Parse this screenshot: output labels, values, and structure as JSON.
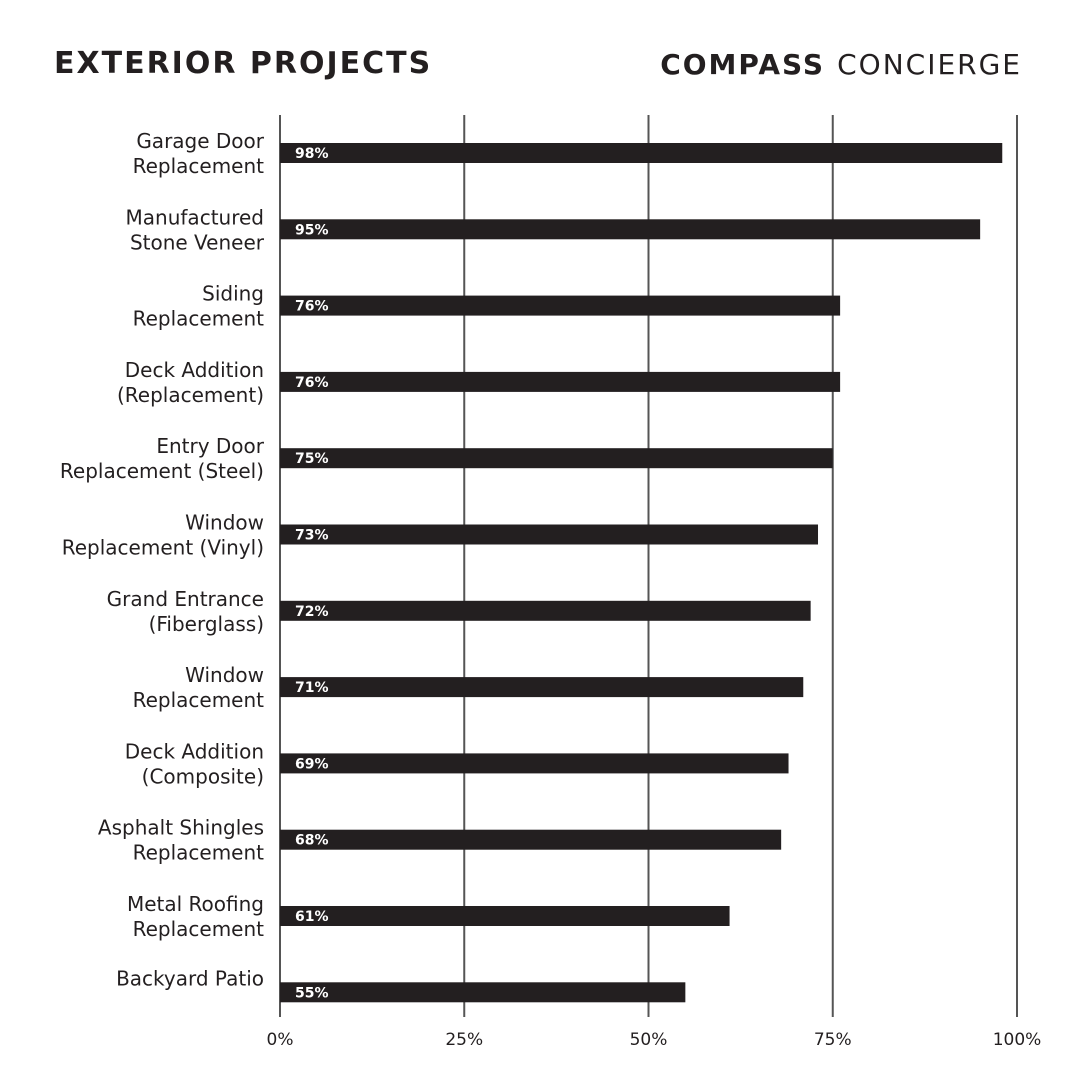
{
  "header": {
    "title": "EXTERIOR PROJECTS",
    "brand_primary": "COMPASS",
    "brand_secondary": "CONCIERGE"
  },
  "colors": {
    "bar": "#231f20",
    "grid": "#555555",
    "text": "#231f20",
    "bar_label": "#ffffff"
  },
  "chart_data": {
    "type": "bar",
    "orientation": "horizontal",
    "title": "EXTERIOR PROJECTS",
    "xlabel": "",
    "ylabel": "",
    "xlim": [
      0,
      100
    ],
    "ticks": [
      0,
      25,
      50,
      75,
      100
    ],
    "tick_labels": [
      "0%",
      "25%",
      "50%",
      "75%",
      "100%"
    ],
    "grid": true,
    "categories": [
      [
        "Garage Door",
        "Replacement"
      ],
      [
        "Manufactured",
        "Stone Veneer"
      ],
      [
        "Siding",
        "Replacement"
      ],
      [
        "Deck Addition",
        "(Replacement)"
      ],
      [
        "Entry Door",
        "Replacement (Steel)"
      ],
      [
        "Window",
        "Replacement (Vinyl)"
      ],
      [
        "Grand Entrance",
        "(Fiberglass)"
      ],
      [
        "Window",
        "Replacement"
      ],
      [
        "Deck Addition",
        "(Composite)"
      ],
      [
        "Asphalt Shingles",
        "Replacement"
      ],
      [
        "Metal Roofing",
        "Replacement"
      ],
      [
        "Backyard Patio"
      ]
    ],
    "values": [
      98,
      95,
      76,
      76,
      75,
      73,
      72,
      71,
      69,
      68,
      61,
      55
    ],
    "value_labels": [
      "98%",
      "95%",
      "76%",
      "76%",
      "75%",
      "73%",
      "72%",
      "71%",
      "69%",
      "68%",
      "61%",
      "55%"
    ]
  }
}
